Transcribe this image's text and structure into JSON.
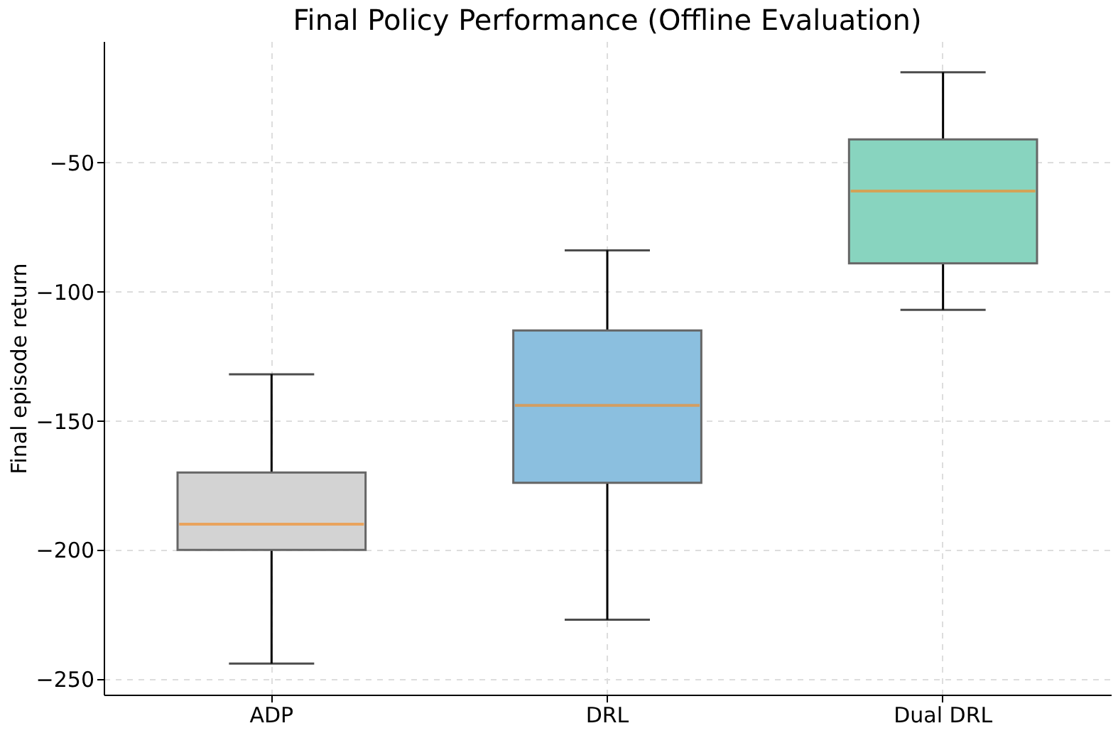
{
  "chart_data": {
    "type": "box",
    "title": "Final Policy Performance (Offline Evaluation)",
    "ylabel": "Final episode return",
    "categories": [
      "ADP",
      "DRL",
      "Dual DRL"
    ],
    "colors": [
      "#d3d3d3",
      "#8bbfdf",
      "#88d4bf"
    ],
    "boxes": [
      {
        "low": -244,
        "q1": -200,
        "median": -190,
        "q3": -170,
        "high": -132
      },
      {
        "low": -227,
        "q1": -174,
        "median": -144,
        "q3": -115,
        "high": -84
      },
      {
        "low": -107,
        "q1": -89,
        "median": -61,
        "q3": -41,
        "high": -15
      }
    ],
    "ylim": [
      -256,
      -3
    ],
    "yticks": [
      -250,
      -200,
      -150,
      -100,
      -50
    ],
    "grid": true
  }
}
